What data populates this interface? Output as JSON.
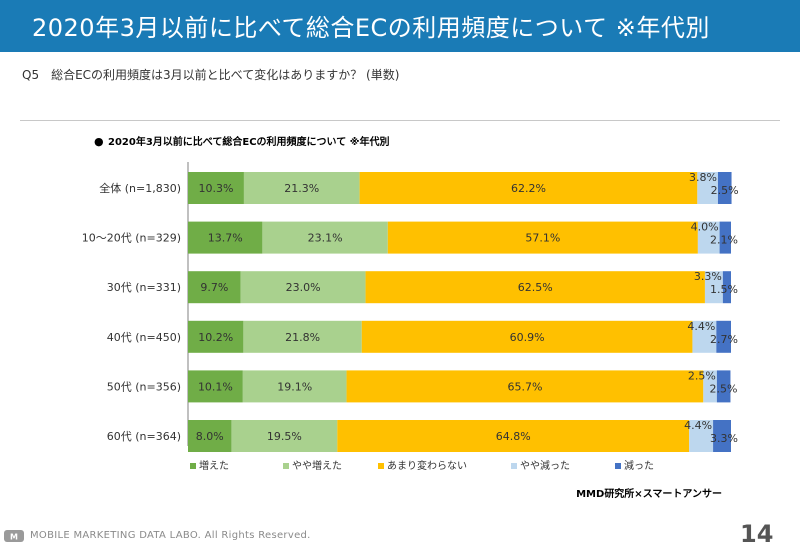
{
  "header": {
    "title": "2020年3月以前に比べて総合ECの利用頻度について ※年代別"
  },
  "question": {
    "text": "Q5　総合ECの利用頻度は3月以前と比べて変化はありますか？ (単数)"
  },
  "footer": {
    "text": "MOBILE MARKETING DATA LABO.  All Rights Reserved.",
    "page": "14"
  },
  "chart_data": {
    "type": "bar",
    "orientation": "horizontal",
    "stacked": true,
    "bullet": "●",
    "title": "2020年3月以前に比べて総合ECの利用頻度について ※年代別",
    "categories": [
      "全体 (n=1,830)",
      "10～20代 (n=329)",
      "30代 (n=331)",
      "40代 (n=450)",
      "50代 (n=356)",
      "60代 (n=364)"
    ],
    "series": [
      {
        "name": "増えた",
        "color": "#70ad47",
        "values": [
          10.3,
          13.7,
          9.7,
          10.2,
          10.1,
          8.0
        ]
      },
      {
        "name": "やや増えた",
        "color": "#a9d18e",
        "values": [
          21.3,
          23.1,
          23.0,
          21.8,
          19.1,
          19.5
        ]
      },
      {
        "name": "あまり変わらない",
        "color": "#ffc000",
        "values": [
          62.2,
          57.1,
          62.5,
          60.9,
          65.7,
          64.8
        ]
      },
      {
        "name": "やや減った",
        "color": "#bdd7ee",
        "values": [
          3.8,
          4.0,
          3.3,
          4.4,
          2.5,
          4.4
        ]
      },
      {
        "name": "減った",
        "color": "#4472c4",
        "values": [
          2.5,
          2.1,
          1.5,
          2.7,
          2.5,
          3.3
        ]
      }
    ],
    "value_suffix": "%",
    "xlim": [
      0,
      100
    ],
    "source": "MMD研究所×スマートアンサー"
  }
}
